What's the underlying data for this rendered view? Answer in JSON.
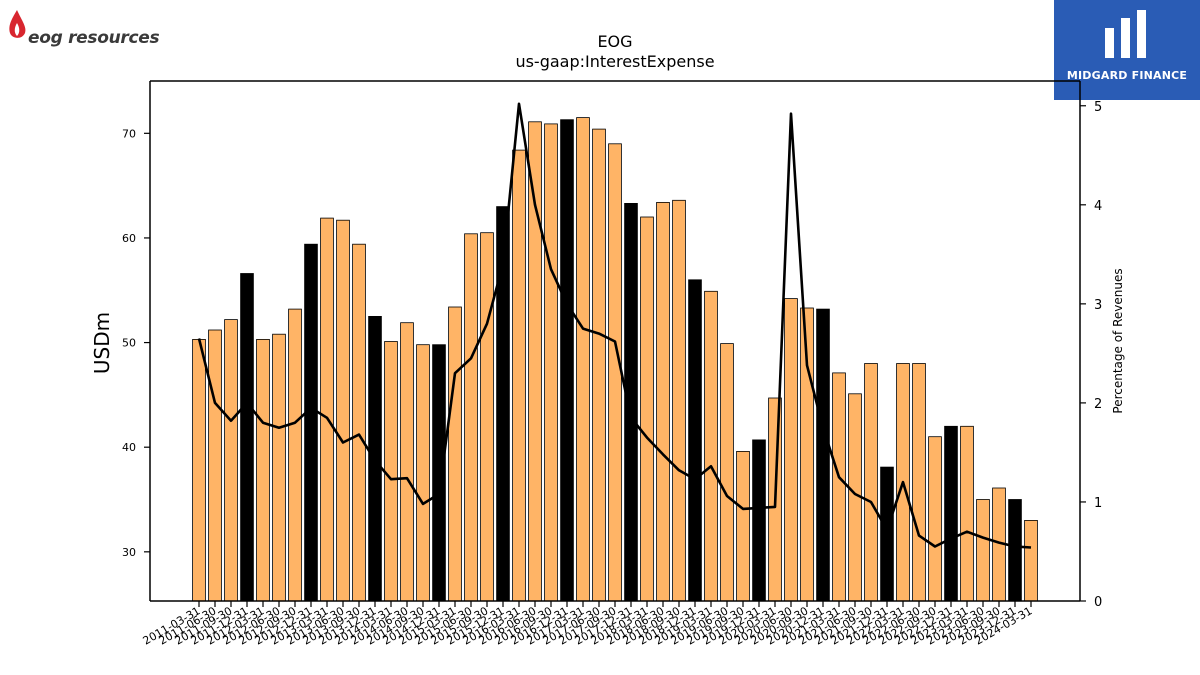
{
  "branding": {
    "company_logo_text": "eog resources",
    "publisher_logo_text": "MIDGARD FINANCE"
  },
  "chart_data": {
    "type": "bar",
    "title": "EOG",
    "subtitle": "us-gaap:InterestExpense",
    "ylabel": "USDm",
    "y2label": "Percentage of Revenues",
    "ylim": [
      25.3,
      75
    ],
    "y2lim": [
      0,
      5.25
    ],
    "yticks": [
      30,
      40,
      50,
      60,
      70
    ],
    "y2ticks": [
      0,
      1,
      2,
      3,
      4,
      5
    ],
    "colors": {
      "bar": "#ffb466",
      "highlight_bar": "#000000",
      "line": "#000000"
    },
    "categories": [
      "2011-03-31",
      "2011-06-30",
      "2011-09-30",
      "2011-12-31",
      "2012-03-31",
      "2012-06-30",
      "2012-09-30",
      "2012-12-31",
      "2013-03-31",
      "2013-06-30",
      "2013-09-30",
      "2013-12-31",
      "2014-03-31",
      "2014-06-30",
      "2014-09-30",
      "2014-12-31",
      "2015-03-31",
      "2015-06-30",
      "2015-09-30",
      "2015-12-31",
      "2016-03-31",
      "2016-06-30",
      "2016-09-30",
      "2016-12-31",
      "2017-03-31",
      "2017-06-30",
      "2017-09-30",
      "2017-12-31",
      "2018-03-31",
      "2018-06-30",
      "2018-09-30",
      "2018-12-31",
      "2019-03-31",
      "2019-06-30",
      "2019-09-30",
      "2019-12-31",
      "2020-03-31",
      "2020-06-30",
      "2020-09-30",
      "2020-12-31",
      "2021-03-31",
      "2021-06-30",
      "2021-09-30",
      "2021-12-31",
      "2022-03-31",
      "2022-06-30",
      "2022-09-30",
      "2022-12-31",
      "2023-03-31",
      "2023-06-30",
      "2023-09-30",
      "2023-12-31",
      "2024-03-31"
    ],
    "series": [
      {
        "values": [
          50.3,
          51.2,
          52.2,
          56.6,
          50.3,
          50.8,
          53.2,
          59.4,
          61.9,
          61.7,
          59.4,
          52.5,
          50.1,
          51.9,
          49.8,
          49.8,
          53.4,
          60.4,
          60.5,
          63.0,
          68.4,
          71.1,
          70.9,
          71.3,
          71.5,
          70.4,
          69.0,
          63.3,
          62.0,
          63.4,
          63.6,
          56.0,
          54.9,
          49.9,
          39.6,
          40.7,
          44.7,
          54.2,
          53.3,
          53.2,
          47.1,
          45.1,
          48.0,
          38.1,
          48.0,
          48.0,
          41.0,
          42.0,
          42.0,
          35.0,
          36.1,
          35.0,
          33.0
        ]
      },
      {
        "values": [
          2.65,
          2.0,
          1.82,
          2.0,
          1.8,
          1.75,
          1.8,
          1.95,
          1.85,
          1.6,
          1.68,
          1.42,
          1.23,
          1.24,
          0.98,
          1.08,
          2.3,
          2.45,
          2.8,
          3.4,
          5.02,
          4.0,
          3.35,
          3.0,
          2.75,
          2.7,
          2.62,
          1.85,
          1.65,
          1.48,
          1.32,
          1.23,
          1.36,
          1.06,
          0.93,
          0.94,
          0.95,
          4.92,
          2.38,
          1.75,
          1.25,
          1.08,
          1.0,
          0.72,
          1.2,
          0.66,
          0.55,
          0.63,
          0.7,
          0.64,
          0.59,
          0.55,
          0.54
        ]
      }
    ]
  }
}
